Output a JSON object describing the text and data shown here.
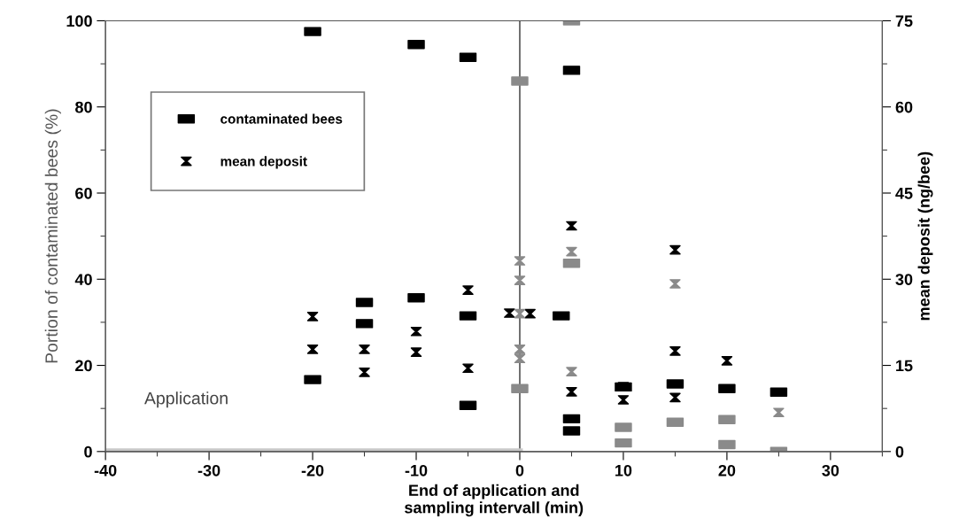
{
  "chart_data": {
    "type": "scatter",
    "xlabel": "End of application and\nsampling intervall (min)",
    "ylabel": "Portion of contaminated bees (%)",
    "y2label": "mean deposit (ng/bee)",
    "annotations": [
      "Application"
    ],
    "xlim": [
      -40,
      35
    ],
    "xticks": [
      -40,
      -30,
      -20,
      -10,
      0,
      10,
      20,
      30
    ],
    "ylim": [
      0,
      100
    ],
    "yticks": [
      0,
      20,
      40,
      60,
      80,
      100
    ],
    "y2lim": [
      0,
      75
    ],
    "y2ticks": [
      0,
      15,
      30,
      45,
      60,
      75
    ],
    "legend": "top left",
    "grid": false,
    "ref_lines": [
      {
        "axis": "x",
        "value": 0,
        "color": "#555555"
      }
    ],
    "series": [
      {
        "name": "contaminated bees",
        "color": "#000000",
        "marker": "square",
        "x": [
          -20,
          -20,
          -15,
          -15,
          -10,
          -10,
          -5,
          -5,
          -5,
          4,
          5,
          5,
          5,
          10,
          15,
          20,
          25
        ],
        "values": [
          97.5,
          16.7,
          34.6,
          29.7,
          94.5,
          35.7,
          91.5,
          31.5,
          10.7,
          31.5,
          88.5,
          7.6,
          4.8,
          15,
          15.7,
          14.6,
          13.8
        ]
      },
      {
        "name": "mean deposit",
        "color": "#000000",
        "axis": "y2",
        "x": [
          -20,
          -20,
          -15,
          -15,
          -10,
          -10,
          -5,
          -5,
          -1,
          1,
          5,
          5,
          10,
          10,
          15,
          15,
          15,
          20
        ],
        "values": [
          23.5,
          17.8,
          17.8,
          13.8,
          20.9,
          17.3,
          28.1,
          14.5,
          24.1,
          24,
          39.3,
          10.4,
          11.3,
          9,
          35.1,
          17.5,
          9.4,
          15.8
        ]
      },
      {
        "color": "#8a8a8a",
        "marker": "square",
        "x": [
          0,
          0,
          5,
          5,
          10,
          10,
          15,
          20,
          20,
          25
        ],
        "values": [
          86,
          14.6,
          100,
          43.7,
          5.6,
          2,
          6.8,
          7.4,
          1.6,
          0
        ]
      },
      {
        "color": "#8a8a8a",
        "axis": "y2",
        "x": [
          0,
          0,
          0,
          0,
          0,
          5,
          5,
          15,
          25
        ],
        "values": [
          33.2,
          29.8,
          24,
          17.8,
          16.2,
          34.8,
          13.9,
          29.2,
          6.8
        ]
      },
      {
        "type": "line",
        "color": "#c8c8c8",
        "x": [
          -40,
          0
        ],
        "values": [
          0,
          0
        ]
      }
    ]
  }
}
